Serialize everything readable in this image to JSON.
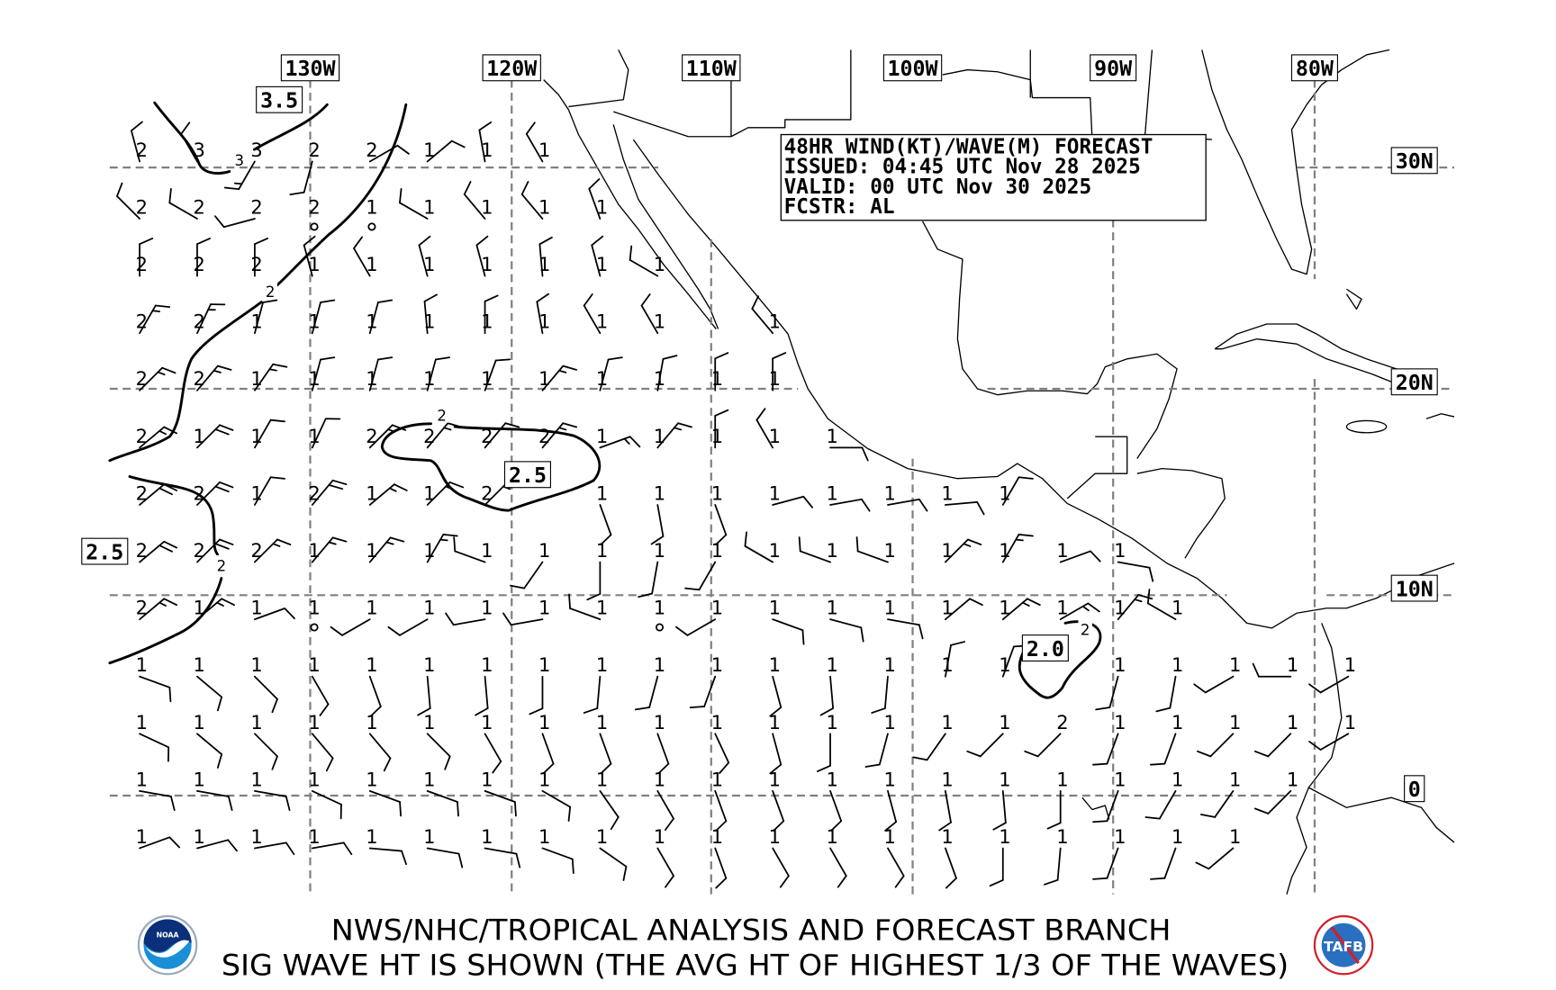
{
  "info_box": {
    "title": "48HR WIND(KT)/WAVE(M) FORECAST",
    "issued": "ISSUED: 04:45 UTC Nov 28 2025",
    "valid": "VALID: 00 UTC Nov 30 2025",
    "forecaster": "FCSTR: AL"
  },
  "longitude_labels": [
    "130W",
    "120W",
    "110W",
    "100W",
    "90W",
    "80W"
  ],
  "latitude_labels": [
    "30N",
    "20N",
    "10N",
    "0"
  ],
  "contour_labels": {
    "boxed": [
      "3.5",
      "2.5",
      "2.5",
      "2.0"
    ],
    "small": [
      "3",
      "2",
      "2",
      "2",
      "2"
    ]
  },
  "footer": {
    "line1": "NWS/NHC/TROPICAL ANALYSIS AND FORECAST BRANCH",
    "line2": "SIG WAVE HT IS SHOWN (THE AVG HT OF HIGHEST 1/3 OF THE WAVES)"
  },
  "logos": {
    "left": "NOAA",
    "right": "TAFB"
  },
  "colors": {
    "grid": "#808080",
    "ink": "#000000",
    "noaa_blue": "#1a8fd8",
    "noaa_navy": "#0b2f7a",
    "tafb_red": "#d0202a"
  },
  "forecast_grid": {
    "units": {
      "wave": "m",
      "wind": "kt"
    },
    "rows": [
      {
        "waves": [
          2,
          3,
          3,
          2,
          2,
          1,
          1,
          1
        ],
        "wind_dir": [
          345,
          330,
          210,
          195,
          60,
          50,
          350,
          330
        ],
        "wind_kt": [
          10,
          10,
          15,
          10,
          10,
          10,
          10,
          10
        ]
      },
      {
        "waves": [
          2,
          2,
          2,
          2,
          1,
          1,
          1,
          1,
          1
        ],
        "wind_dir": [
          315,
          300,
          255,
          0,
          0,
          300,
          320,
          320,
          340
        ],
        "wind_kt": [
          10,
          10,
          10,
          0,
          0,
          10,
          10,
          10,
          10
        ]
      },
      {
        "waves": [
          2,
          2,
          2,
          1,
          1,
          1,
          1,
          1,
          1,
          1
        ],
        "wind_dir": [
          0,
          0,
          0,
          345,
          330,
          345,
          345,
          355,
          345,
          300
        ],
        "wind_kt": [
          10,
          10,
          10,
          10,
          10,
          10,
          10,
          10,
          10,
          10
        ]
      },
      {
        "waves": [
          2,
          2,
          1,
          1,
          1,
          1,
          1,
          1,
          1,
          1,
          null,
          1
        ],
        "wind_dir": [
          30,
          25,
          15,
          15,
          15,
          355,
          0,
          350,
          330,
          330,
          null,
          320
        ],
        "wind_kt": [
          15,
          15,
          10,
          10,
          10,
          10,
          10,
          10,
          10,
          10,
          null,
          10
        ]
      },
      {
        "waves": [
          2,
          2,
          1,
          1,
          1,
          1,
          1,
          1,
          1,
          1,
          1,
          1
        ],
        "wind_dir": [
          45,
          40,
          35,
          15,
          15,
          15,
          20,
          40,
          15,
          10,
          0,
          0
        ],
        "wind_kt": [
          15,
          15,
          15,
          10,
          10,
          10,
          10,
          15,
          10,
          10,
          10,
          10
        ]
      },
      {
        "waves": [
          2,
          1,
          1,
          1,
          2,
          2,
          2,
          2,
          1,
          1,
          1,
          1,
          1
        ],
        "wind_dir": [
          50,
          45,
          30,
          25,
          45,
          40,
          40,
          40,
          70,
          40,
          0,
          330,
          90
        ],
        "wind_kt": [
          15,
          20,
          10,
          10,
          15,
          15,
          15,
          15,
          15,
          15,
          10,
          10,
          10
        ]
      },
      {
        "waves": [
          2,
          2,
          1,
          2,
          1,
          1,
          2,
          null,
          1,
          1,
          1,
          1,
          1,
          1,
          1,
          1
        ],
        "wind_dir": [
          50,
          45,
          30,
          40,
          50,
          45,
          45,
          null,
          160,
          170,
          160,
          75,
          80,
          80,
          85,
          30
        ],
        "wind_kt": [
          20,
          20,
          10,
          20,
          15,
          15,
          15,
          null,
          10,
          10,
          10,
          10,
          10,
          10,
          10,
          10
        ]
      },
      {
        "waves": [
          2,
          2,
          2,
          1,
          1,
          1,
          1,
          1,
          1,
          1,
          1,
          1,
          1,
          1,
          1,
          1,
          1,
          1
        ],
        "wind_dir": [
          50,
          45,
          45,
          40,
          40,
          30,
          290,
          215,
          180,
          190,
          210,
          300,
          290,
          290,
          45,
          30,
          70,
          100
        ],
        "wind_kt": [
          20,
          20,
          15,
          15,
          15,
          15,
          10,
          10,
          10,
          10,
          10,
          10,
          10,
          10,
          15,
          15,
          10,
          10
        ]
      },
      {
        "waves": [
          2,
          1,
          1,
          1,
          1,
          1,
          1,
          1,
          1,
          1,
          1,
          1,
          1,
          1,
          1,
          1,
          1,
          1,
          1
        ],
        "wind_dir": [
          50,
          50,
          70,
          0,
          240,
          240,
          260,
          260,
          290,
          0,
          240,
          110,
          105,
          100,
          50,
          50,
          60,
          40,
          300
        ],
        "wind_kt": [
          15,
          15,
          10,
          0,
          10,
          10,
          10,
          10,
          10,
          0,
          10,
          10,
          10,
          10,
          10,
          15,
          15,
          15,
          10
        ]
      },
      {
        "waves": [
          1,
          1,
          1,
          1,
          1,
          1,
          1,
          1,
          1,
          1,
          1,
          1,
          1,
          1,
          1,
          1,
          null,
          1,
          1,
          1,
          1,
          1
        ],
        "wind_dir": [
          110,
          130,
          135,
          150,
          160,
          175,
          175,
          180,
          185,
          195,
          200,
          165,
          175,
          185,
          10,
          20,
          null,
          195,
          190,
          240,
          270,
          240
        ],
        "wind_kt": [
          10,
          10,
          10,
          10,
          10,
          10,
          10,
          10,
          10,
          10,
          10,
          10,
          10,
          10,
          10,
          10,
          null,
          10,
          10,
          10,
          10,
          10
        ]
      },
      {
        "waves": [
          1,
          1,
          1,
          1,
          1,
          1,
          1,
          1,
          1,
          1,
          1,
          1,
          1,
          1,
          1,
          1,
          2,
          1,
          1,
          1,
          1,
          1
        ],
        "wind_dir": [
          115,
          130,
          135,
          140,
          140,
          135,
          150,
          160,
          160,
          160,
          155,
          165,
          180,
          195,
          215,
          225,
          225,
          200,
          200,
          225,
          225,
          240
        ],
        "wind_kt": [
          10,
          10,
          10,
          10,
          10,
          10,
          10,
          10,
          10,
          10,
          10,
          10,
          10,
          10,
          10,
          10,
          10,
          10,
          10,
          10,
          10,
          10
        ]
      },
      {
        "waves": [
          1,
          1,
          1,
          1,
          1,
          1,
          1,
          1,
          1,
          1,
          1,
          1,
          1,
          1,
          1,
          1,
          1,
          1,
          1,
          1,
          1
        ],
        "wind_dir": [
          100,
          100,
          100,
          115,
          110,
          110,
          110,
          120,
          145,
          150,
          160,
          160,
          160,
          165,
          170,
          175,
          180,
          200,
          210,
          215,
          225
        ],
        "wind_kt": [
          10,
          10,
          10,
          10,
          10,
          10,
          10,
          10,
          10,
          10,
          10,
          10,
          10,
          10,
          10,
          10,
          10,
          10,
          10,
          10,
          10
        ]
      },
      {
        "waves": [
          1,
          1,
          1,
          1,
          1,
          1,
          1,
          1,
          1,
          1,
          1,
          1,
          1,
          1,
          1,
          1,
          1,
          1,
          1,
          1
        ],
        "wind_dir": [
          70,
          75,
          80,
          80,
          95,
          100,
          100,
          110,
          125,
          150,
          160,
          150,
          150,
          150,
          160,
          180,
          185,
          200,
          200,
          230
        ],
        "wind_kt": [
          10,
          10,
          10,
          10,
          10,
          10,
          10,
          10,
          10,
          10,
          10,
          10,
          10,
          10,
          10,
          10,
          10,
          10,
          10,
          10
        ]
      }
    ]
  }
}
